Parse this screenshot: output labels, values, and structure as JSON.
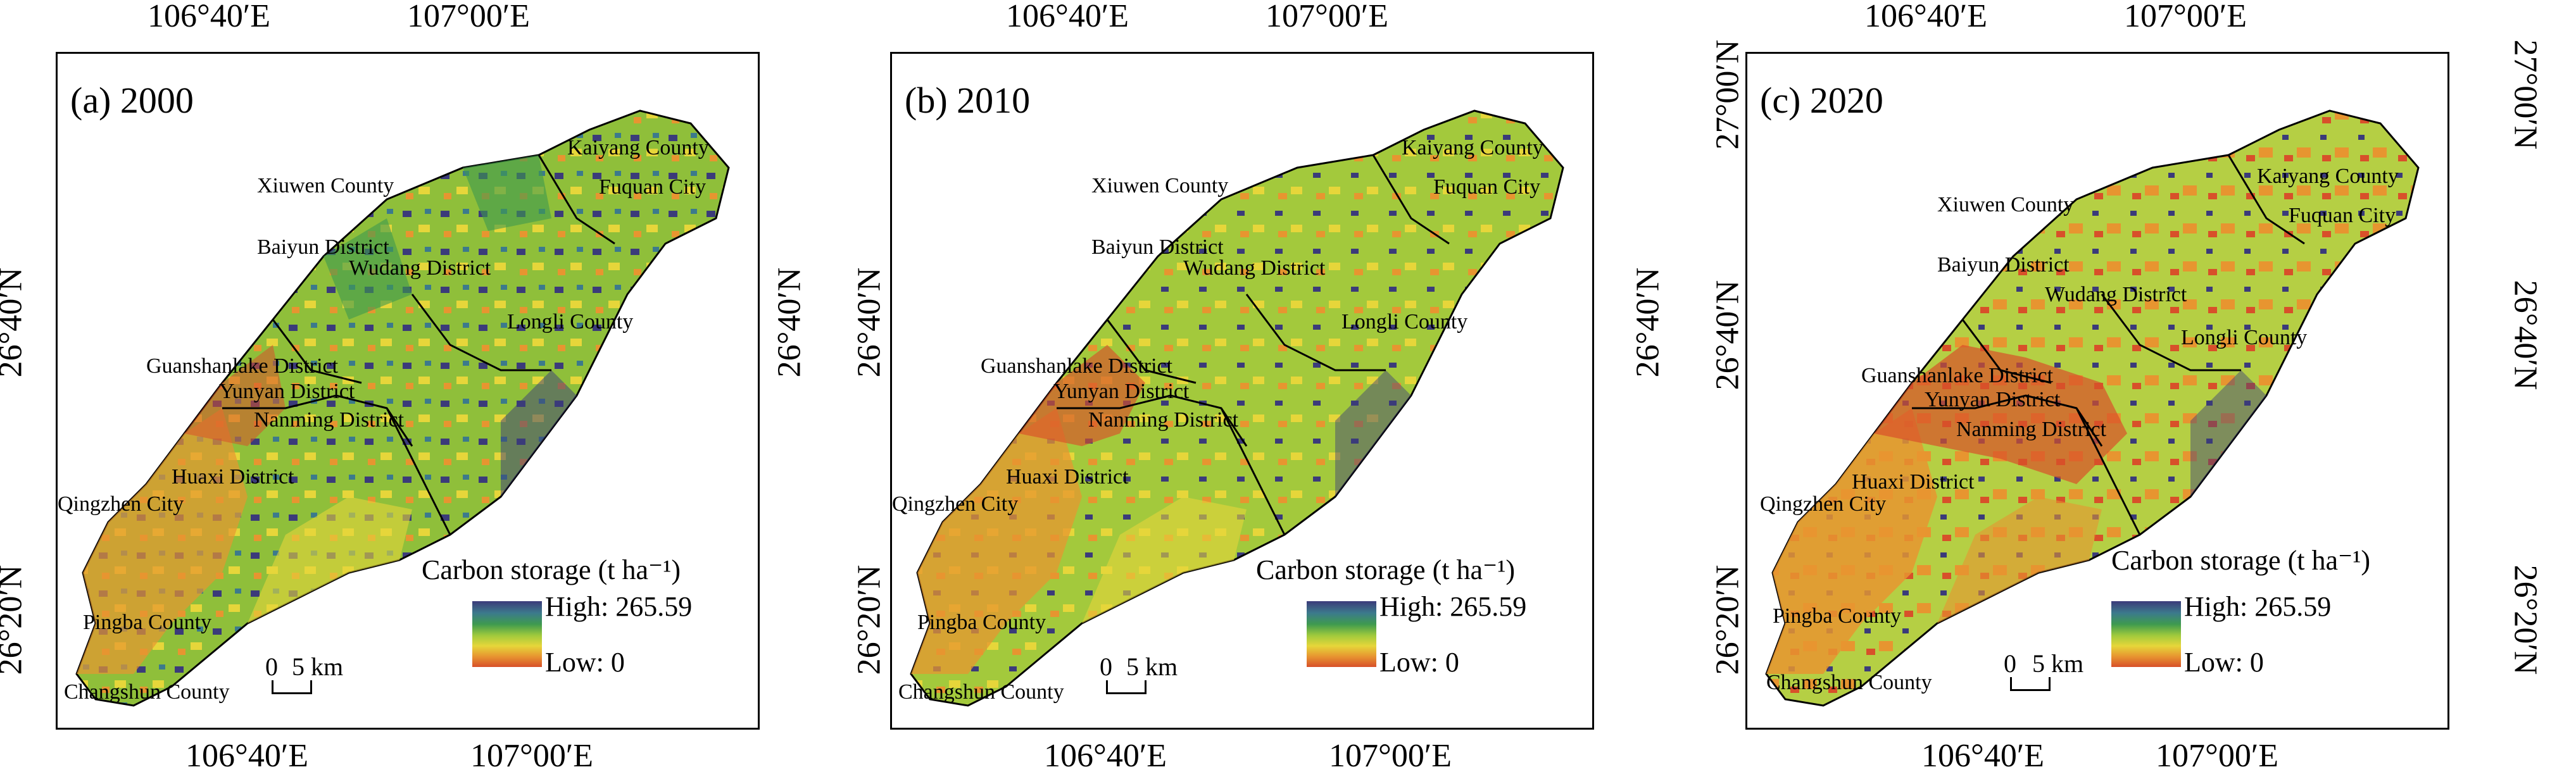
{
  "panels": [
    {
      "title": "(a) 2000",
      "top_ticks": [
        "106°40′E",
        "107°00′E"
      ],
      "bottom_ticks": [
        "106°40′E",
        "107°00′E"
      ],
      "left_ticks": [
        "26°40′N",
        "26°20′N"
      ],
      "right_ticks": [
        "26°40′N"
      ],
      "districts": [
        "Kaiyang County",
        "Fuquan City",
        "Xiuwen County",
        "Baiyun District",
        "Wudang District",
        "Longli County",
        "Guanshanlake District",
        "Yunyan District",
        "Nanming District",
        "Huaxi District",
        "Qingzhen City",
        "Pingba County",
        "Changshun County"
      ],
      "legend": {
        "title": "Carbon storage (t ha⁻¹)",
        "high": "High: 265.59",
        "low": "Low: 0"
      },
      "scale": {
        "zero": "0",
        "label": "5 km"
      }
    },
    {
      "title": "(b) 2010",
      "top_ticks": [
        "106°40′E",
        "107°00′E"
      ],
      "bottom_ticks": [
        "106°40′E",
        "107°00′E"
      ],
      "left_ticks": [
        "26°40′N",
        "26°20′N"
      ],
      "right_ticks": [
        "26°40′N"
      ],
      "districts": [
        "Kaiyang County",
        "Fuquan City",
        "Xiuwen County",
        "Baiyun District",
        "Wudang District",
        "Longli County",
        "Guanshanlake District",
        "Yunyan District",
        "Nanming District",
        "Huaxi District",
        "Qingzhen City",
        "Pingba County",
        "Changshun County"
      ],
      "legend": {
        "title": "Carbon storage (t ha⁻¹)",
        "high": "High: 265.59",
        "low": "Low: 0"
      },
      "scale": {
        "zero": "0",
        "label": "5 km"
      }
    },
    {
      "title": "(c) 2020",
      "top_ticks": [
        "106°40′E",
        "107°00′E"
      ],
      "bottom_ticks": [
        "106°40′E",
        "107°00′E"
      ],
      "left_ticks": [
        "27°00′N",
        "26°40′N",
        "26°20′N"
      ],
      "right_ticks": [
        "27°00′N",
        "26°40′N",
        "26°20′N"
      ],
      "districts": [
        "Kaiyang County",
        "Fuquan City",
        "Xiuwen County",
        "Baiyun District",
        "Wudang District",
        "Longli County",
        "Guanshanlake District",
        "Yunyan District",
        "Nanming District",
        "Huaxi District",
        "Qingzhen City",
        "Pingba County",
        "Changshun County"
      ],
      "legend": {
        "title": "Carbon storage (t ha⁻¹)",
        "high": "High: 265.59",
        "low": "Low: 0"
      },
      "scale": {
        "zero": "0",
        "label": "5 km"
      }
    }
  ],
  "colors": {
    "high": "#3b3b7a",
    "mid_high": "#3e9a4f",
    "mid": "#9fca3c",
    "mid_low": "#e6d63a",
    "low": "#d8502a"
  }
}
